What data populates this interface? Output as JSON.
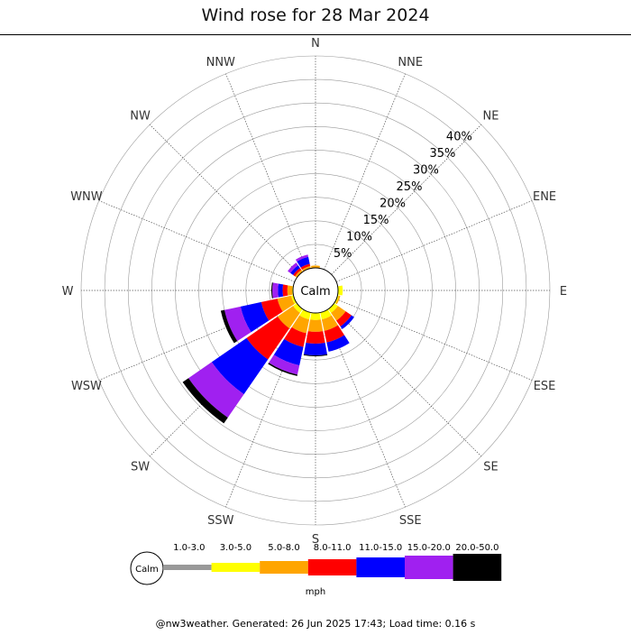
{
  "chart_data": {
    "type": "wind-rose",
    "title": "Wind rose for 28 Mar 2024",
    "directions": [
      "N",
      "NNE",
      "NE",
      "ENE",
      "E",
      "ESE",
      "SE",
      "SSE",
      "S",
      "SSW",
      "SW",
      "WSW",
      "W",
      "WNW",
      "NW",
      "NNW"
    ],
    "radial_ticks": [
      "5%",
      "10%",
      "15%",
      "20%",
      "25%",
      "30%",
      "35%",
      "40%"
    ],
    "radial_max": 45,
    "center_label": "Calm",
    "unit": "mph",
    "speed_bins": [
      {
        "label": "1.0-3.0",
        "color": "#999999"
      },
      {
        "label": "3.0-5.0",
        "color": "#ffff00"
      },
      {
        "label": "5.0-8.0",
        "color": "#ffa500"
      },
      {
        "label": "8.0-11.0",
        "color": "#ff0000"
      },
      {
        "label": "11.0-15.0",
        "color": "#0000ff"
      },
      {
        "label": "15.0-20.0",
        "color": "#a020f0"
      },
      {
        "label": "20.0-50.0",
        "color": "#000000"
      }
    ],
    "series": [
      {
        "direction": "N",
        "values": [
          0,
          0,
          0.5,
          0,
          0,
          0,
          0
        ]
      },
      {
        "direction": "NNE",
        "values": [
          0,
          0,
          0,
          0,
          0,
          0,
          0
        ]
      },
      {
        "direction": "NE",
        "values": [
          0,
          0,
          0,
          0,
          0,
          0,
          0
        ]
      },
      {
        "direction": "ENE",
        "values": [
          0,
          0,
          0,
          0,
          0,
          0,
          0
        ]
      },
      {
        "direction": "E",
        "values": [
          0,
          1.0,
          0,
          0,
          0,
          0,
          0
        ]
      },
      {
        "direction": "ESE",
        "values": [
          0,
          0.3,
          0.3,
          0,
          0,
          0,
          0
        ]
      },
      {
        "direction": "SE",
        "values": [
          0,
          1.0,
          2.0,
          1.5,
          0.7,
          0,
          0
        ]
      },
      {
        "direction": "SSE",
        "values": [
          0,
          1.5,
          2.5,
          2.5,
          2.0,
          0,
          0
        ]
      },
      {
        "direction": "S",
        "values": [
          0,
          1.5,
          2.5,
          2.5,
          2.5,
          0,
          0.2
        ]
      },
      {
        "direction": "SSW",
        "values": [
          0,
          1.5,
          3.0,
          3.0,
          4.0,
          2.0,
          0.3
        ]
      },
      {
        "direction": "SW",
        "values": [
          0,
          1.0,
          4.0,
          8.0,
          9.0,
          6.0,
          1.5
        ]
      },
      {
        "direction": "WSW",
        "values": [
          0,
          0.5,
          3.0,
          3.5,
          4.5,
          3.5,
          0.8
        ]
      },
      {
        "direction": "W",
        "values": [
          0,
          0.2,
          1.0,
          1.0,
          1.0,
          1.2,
          0.2
        ]
      },
      {
        "direction": "WNW",
        "values": [
          0,
          0,
          0,
          0,
          0,
          0,
          0
        ]
      },
      {
        "direction": "NW",
        "values": [
          0,
          0,
          0.5,
          0.5,
          0.7,
          0.7,
          0
        ]
      },
      {
        "direction": "NNW",
        "values": [
          0,
          0,
          0.5,
          0.5,
          1.5,
          0.5,
          0
        ]
      }
    ]
  },
  "footer": "@nw3weather. Generated: 26 Jun 2025 17:43; Load time: 0.16 s"
}
